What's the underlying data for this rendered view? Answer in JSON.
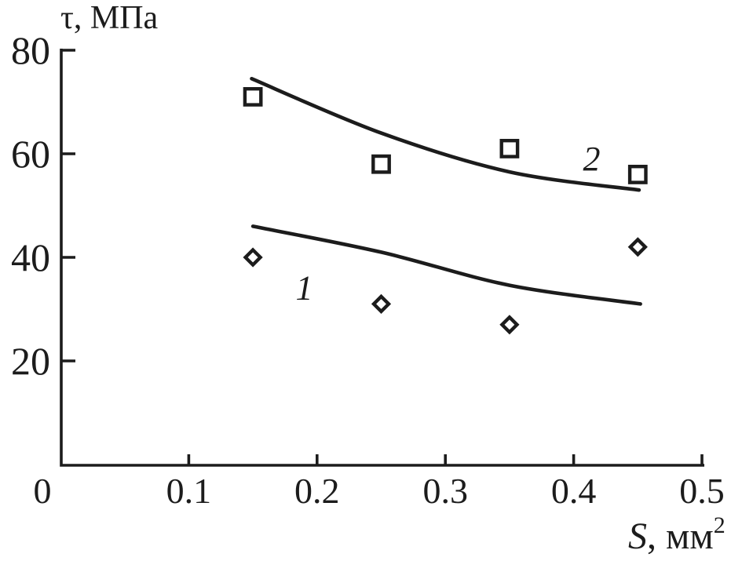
{
  "figure": {
    "background": "#ffffff",
    "ink_color": "#1c1c1c"
  },
  "chart_data": {
    "type": "scatter",
    "title": "",
    "x_axis": {
      "label": "S, мм²",
      "label_var": "S",
      "label_rest": ", мм",
      "label_sup": "2",
      "tick_values": [
        0,
        0.1,
        0.2,
        0.3,
        0.4,
        0.5
      ],
      "tick_labels": [
        "0",
        "0.1",
        "0.2",
        "0.3",
        "0.4",
        "0.5"
      ],
      "range": [
        0,
        0.5
      ]
    },
    "y_axis": {
      "label": "τ, МПа",
      "tick_values": [
        20,
        40,
        60,
        80
      ],
      "tick_labels": [
        "20",
        "40",
        "60",
        "80"
      ],
      "range": [
        0,
        80
      ]
    },
    "grid": false,
    "legend_position": "inline-curve-labels",
    "series": [
      {
        "name": "1",
        "marker": "diamond",
        "points": [
          [
            0.15,
            40
          ],
          [
            0.25,
            31
          ],
          [
            0.35,
            27
          ],
          [
            0.45,
            42
          ]
        ],
        "trend_curve": [
          [
            0.15,
            46
          ],
          [
            0.25,
            41
          ],
          [
            0.35,
            34.6
          ],
          [
            0.452,
            31
          ]
        ],
        "curve_label": "1",
        "curve_label_pos": [
          0.19,
          34.2
        ]
      },
      {
        "name": "2",
        "marker": "square",
        "points": [
          [
            0.15,
            71
          ],
          [
            0.25,
            58
          ],
          [
            0.35,
            61
          ],
          [
            0.45,
            56
          ]
        ],
        "trend_curve": [
          [
            0.149,
            74.5
          ],
          [
            0.25,
            64
          ],
          [
            0.35,
            56.5
          ],
          [
            0.451,
            53
          ]
        ],
        "curve_label": "2",
        "curve_label_pos": [
          0.414,
          59.1
        ]
      }
    ]
  }
}
